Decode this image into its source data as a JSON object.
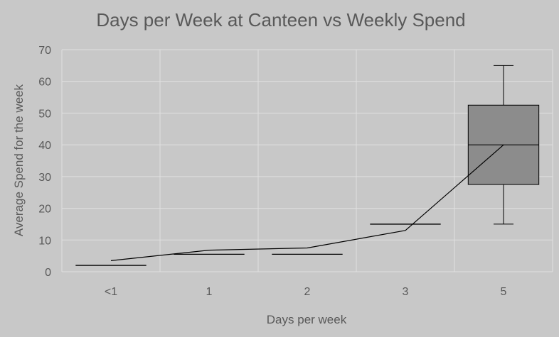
{
  "chart_data": {
    "type": "box",
    "title": "Days per Week at Canteen vs Weekly Spend",
    "xlabel": "Days per week",
    "ylabel": "Average Spend for the week",
    "categories": [
      "<1",
      "1",
      "2",
      "3",
      "5"
    ],
    "ylim": [
      0,
      70
    ],
    "yticks": [
      0,
      10,
      20,
      30,
      40,
      50,
      60,
      70
    ],
    "grid": true,
    "legend": "none",
    "boxes": [
      {
        "category": "<1",
        "min": 2,
        "q1": 2,
        "median": 2,
        "q3": 2,
        "max": 2
      },
      {
        "category": "1",
        "min": 5.5,
        "q1": 5.5,
        "median": 5.5,
        "q3": 5.5,
        "max": 5.5
      },
      {
        "category": "2",
        "min": 5.5,
        "q1": 5.5,
        "median": 5.5,
        "q3": 5.5,
        "max": 5.5
      },
      {
        "category": "3",
        "min": 15,
        "q1": 15,
        "median": 15,
        "q3": 15,
        "max": 15
      },
      {
        "category": "5",
        "min": 15,
        "q1": 27.5,
        "median": 40,
        "q3": 52.5,
        "max": 65
      }
    ],
    "mean_line": [
      3.5,
      6.8,
      7.5,
      13,
      40
    ],
    "colors": {
      "background": "#c8c8c8",
      "grid": "#e0e0e0",
      "box_fill": "#8c8c8c",
      "line": "#000000",
      "text": "#595959"
    }
  }
}
